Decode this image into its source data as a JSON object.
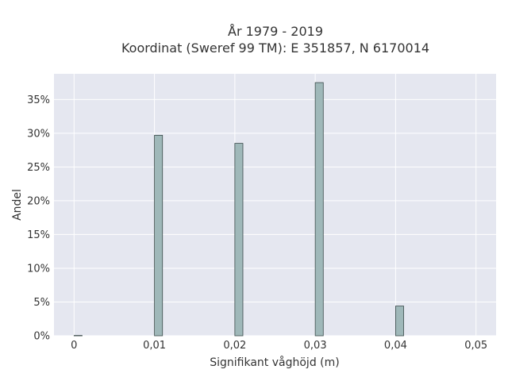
{
  "chart_data": {
    "type": "bar",
    "title_line1": "År 1979 - 2019",
    "title_line2": "Koordinat (Sweref 99 TM): E 351857, N 6170014",
    "xlabel": "Signifikant våghöjd (m)",
    "ylabel": "Andel",
    "x_ticks": [
      "0",
      "0,01",
      "0,02",
      "0,03",
      "0,04",
      "0,05"
    ],
    "x_tick_values": [
      0,
      0.01,
      0.02,
      0.03,
      0.04,
      0.05
    ],
    "y_ticks": [
      "0%",
      "5%",
      "10%",
      "15%",
      "20%",
      "25%",
      "30%",
      "35%"
    ],
    "y_tick_values": [
      0,
      5,
      10,
      15,
      20,
      25,
      30,
      35
    ],
    "xlim": [
      -0.0025,
      0.0525
    ],
    "ylim": [
      0,
      38.8
    ],
    "grid": true,
    "series": [
      {
        "x": [
          0.0005,
          0.0105,
          0.0205,
          0.0305,
          0.0405
        ],
        "values": [
          0.05,
          29.7,
          28.5,
          37.5,
          4.4
        ]
      }
    ],
    "colors": {
      "bar_fill": "#9fb8b9",
      "bar_stroke": "#3a4a4a",
      "plot_bg": "#e5e7f0",
      "grid": "#ffffff",
      "text": "#333333"
    }
  }
}
